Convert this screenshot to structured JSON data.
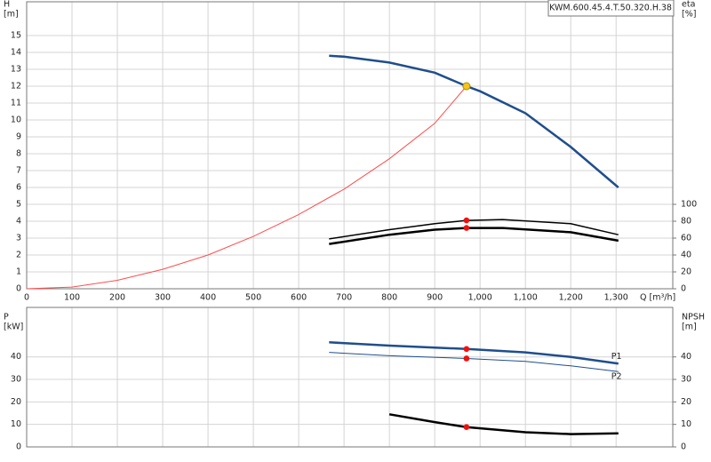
{
  "chart_data": [
    {
      "type": "line",
      "title": "KWM.600.45.4.T.50.320.H.38",
      "x_label": "Q [m³/h]",
      "y_label": [
        "H",
        "[m]"
      ],
      "y2_label": [
        "eta",
        "[%]"
      ],
      "xlim": [
        0,
        1425
      ],
      "ylim": [
        0,
        17
      ],
      "y2lim": [
        0,
        340
      ],
      "grid": true,
      "xticks": [
        0,
        100,
        200,
        300,
        400,
        500,
        600,
        700,
        800,
        900,
        {
          "value": 1000,
          "label": "1,000"
        },
        {
          "value": 1100,
          "label": "1,100"
        },
        {
          "value": 1200,
          "label": "1,200"
        },
        {
          "value": 1300,
          "label": "1,300"
        }
      ],
      "yticks": [
        0,
        1,
        2,
        3,
        4,
        5,
        6,
        7,
        8,
        9,
        10,
        11,
        12,
        13,
        14,
        15
      ],
      "y2ticks": [
        0,
        20,
        40,
        60,
        80,
        100
      ],
      "series": [
        {
          "color": "#1f4e8c",
          "width": 2.5,
          "x": [
            667,
            700,
            800,
            900,
            970,
            1000,
            1100,
            1200,
            1305
          ],
          "values": [
            13.8,
            13.75,
            13.4,
            12.8,
            12.0,
            11.7,
            10.4,
            8.4,
            6.0
          ]
        },
        {
          "color": "#ff4d4d",
          "width": 1,
          "x": [
            0,
            100,
            200,
            300,
            400,
            500,
            600,
            700,
            800,
            900,
            970
          ],
          "values": [
            0,
            0.1,
            0.5,
            1.15,
            2.0,
            3.1,
            4.4,
            5.9,
            7.7,
            9.8,
            12.0
          ]
        },
        {
          "color": "#000000",
          "width": 1.5,
          "axis": "y2",
          "x": [
            667,
            800,
            900,
            970,
            1050,
            1200,
            1305
          ],
          "values": [
            59,
            70,
            77,
            81,
            82,
            77,
            64
          ]
        },
        {
          "color": "#000000",
          "width": 2.5,
          "axis": "y2",
          "x": [
            667,
            800,
            900,
            970,
            1050,
            1200,
            1305
          ],
          "values": [
            53,
            64,
            70,
            72,
            72,
            67,
            57
          ]
        }
      ],
      "points": [
        {
          "color": "#f5c518",
          "x": 970,
          "value": 12.0
        },
        {
          "color": "#ee1111",
          "axis": "y2",
          "x": 970,
          "value": 81
        },
        {
          "color": "#ee1111",
          "axis": "y2",
          "x": 970,
          "value": 72
        }
      ]
    },
    {
      "type": "line",
      "y_label": [
        "P",
        "[kW]"
      ],
      "y2_label": [
        "NPSH",
        "[m]"
      ],
      "xlim": [
        0,
        1425
      ],
      "ylim": [
        0,
        62
      ],
      "y2lim": [
        0,
        62
      ],
      "grid": true,
      "yticks": [
        0,
        10,
        20,
        30,
        40
      ],
      "y2ticks": [
        0,
        10,
        20,
        30,
        40
      ],
      "series": [
        {
          "name": "P1",
          "color": "#1f4e8c",
          "width": 2.5,
          "x": [
            667,
            800,
            970,
            1100,
            1200,
            1305
          ],
          "values": [
            46.5,
            45,
            43.5,
            42,
            40,
            37
          ]
        },
        {
          "name": "P2",
          "color": "#1f4e8c",
          "width": 1,
          "x": [
            667,
            800,
            970,
            1100,
            1200,
            1305
          ],
          "values": [
            42,
            40.5,
            39.3,
            38,
            36,
            33.5
          ]
        },
        {
          "color": "#000000",
          "width": 2.5,
          "axis": "y2",
          "x": [
            800,
            900,
            970,
            1100,
            1200,
            1305
          ],
          "values": [
            14.5,
            11,
            8.8,
            6.5,
            5.7,
            6.0
          ]
        }
      ],
      "points": [
        {
          "color": "#ee1111",
          "x": 970,
          "value": 43.5
        },
        {
          "color": "#ee1111",
          "x": 970,
          "value": 39.3
        },
        {
          "color": "#ee1111",
          "axis": "y2",
          "x": 970,
          "value": 8.8
        }
      ]
    }
  ]
}
